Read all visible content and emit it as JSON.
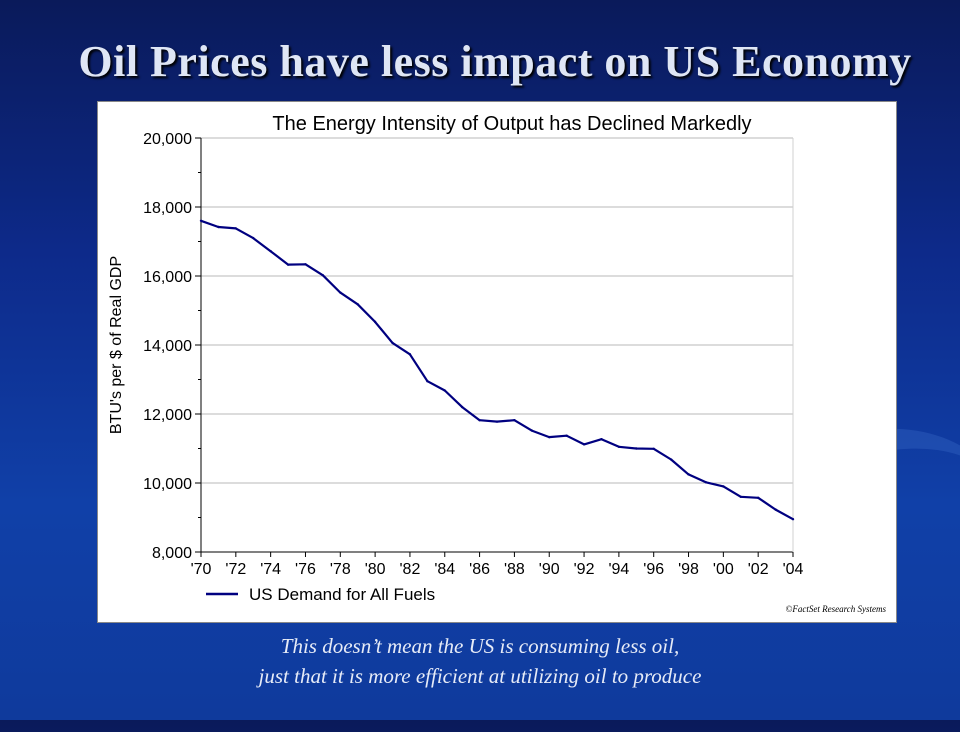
{
  "slide": {
    "title": "Oil Prices have less impact on US Economy",
    "caption_line1": "This doesn’t mean the US is consuming less oil,",
    "caption_line2": "just that it is more efficient at utilizing oil to produce"
  },
  "chart_data": {
    "type": "line",
    "title": "The Energy Intensity of Output has Declined Markedly",
    "ylabel": "BTU's per $ of Real GDP",
    "xlabel": "",
    "ylim": [
      8000,
      20000
    ],
    "yticks": [
      8000,
      10000,
      12000,
      14000,
      16000,
      18000,
      20000
    ],
    "ytick_labels": [
      "8,000",
      "10,000",
      "12,000",
      "14,000",
      "16,000",
      "18,000",
      "20,000"
    ],
    "xlim": [
      1970,
      2004
    ],
    "xticks": [
      1970,
      1972,
      1974,
      1976,
      1978,
      1980,
      1982,
      1984,
      1986,
      1988,
      1990,
      1992,
      1994,
      1996,
      1998,
      2000,
      2002,
      2004
    ],
    "xtick_labels": [
      "'70",
      "'72",
      "'74",
      "'76",
      "'78",
      "'80",
      "'82",
      "'84",
      "'86",
      "'88",
      "'90",
      "'92",
      "'94",
      "'96",
      "'98",
      "'00",
      "'02",
      "'04"
    ],
    "grid": true,
    "legend": "bottom-left",
    "source": "©FactSet Research Systems",
    "series": [
      {
        "name": "US Demand for All Fuels",
        "color": "#000080",
        "x": [
          1970,
          1971,
          1972,
          1973,
          1974,
          1975,
          1976,
          1977,
          1978,
          1979,
          1980,
          1981,
          1982,
          1983,
          1984,
          1985,
          1986,
          1987,
          1988,
          1989,
          1990,
          1991,
          1992,
          1993,
          1994,
          1995,
          1996,
          1997,
          1998,
          1999,
          2000,
          2001,
          2002,
          2003,
          2004
        ],
        "y": [
          17600,
          17420,
          17380,
          17100,
          16720,
          16330,
          16340,
          16020,
          15520,
          15180,
          14670,
          14060,
          13730,
          12950,
          12680,
          12200,
          11820,
          11780,
          11820,
          11520,
          11330,
          11370,
          11120,
          11270,
          11050,
          11000,
          10990,
          10680,
          10250,
          10020,
          9900,
          9600,
          9570,
          9230,
          8950
        ]
      }
    ]
  }
}
